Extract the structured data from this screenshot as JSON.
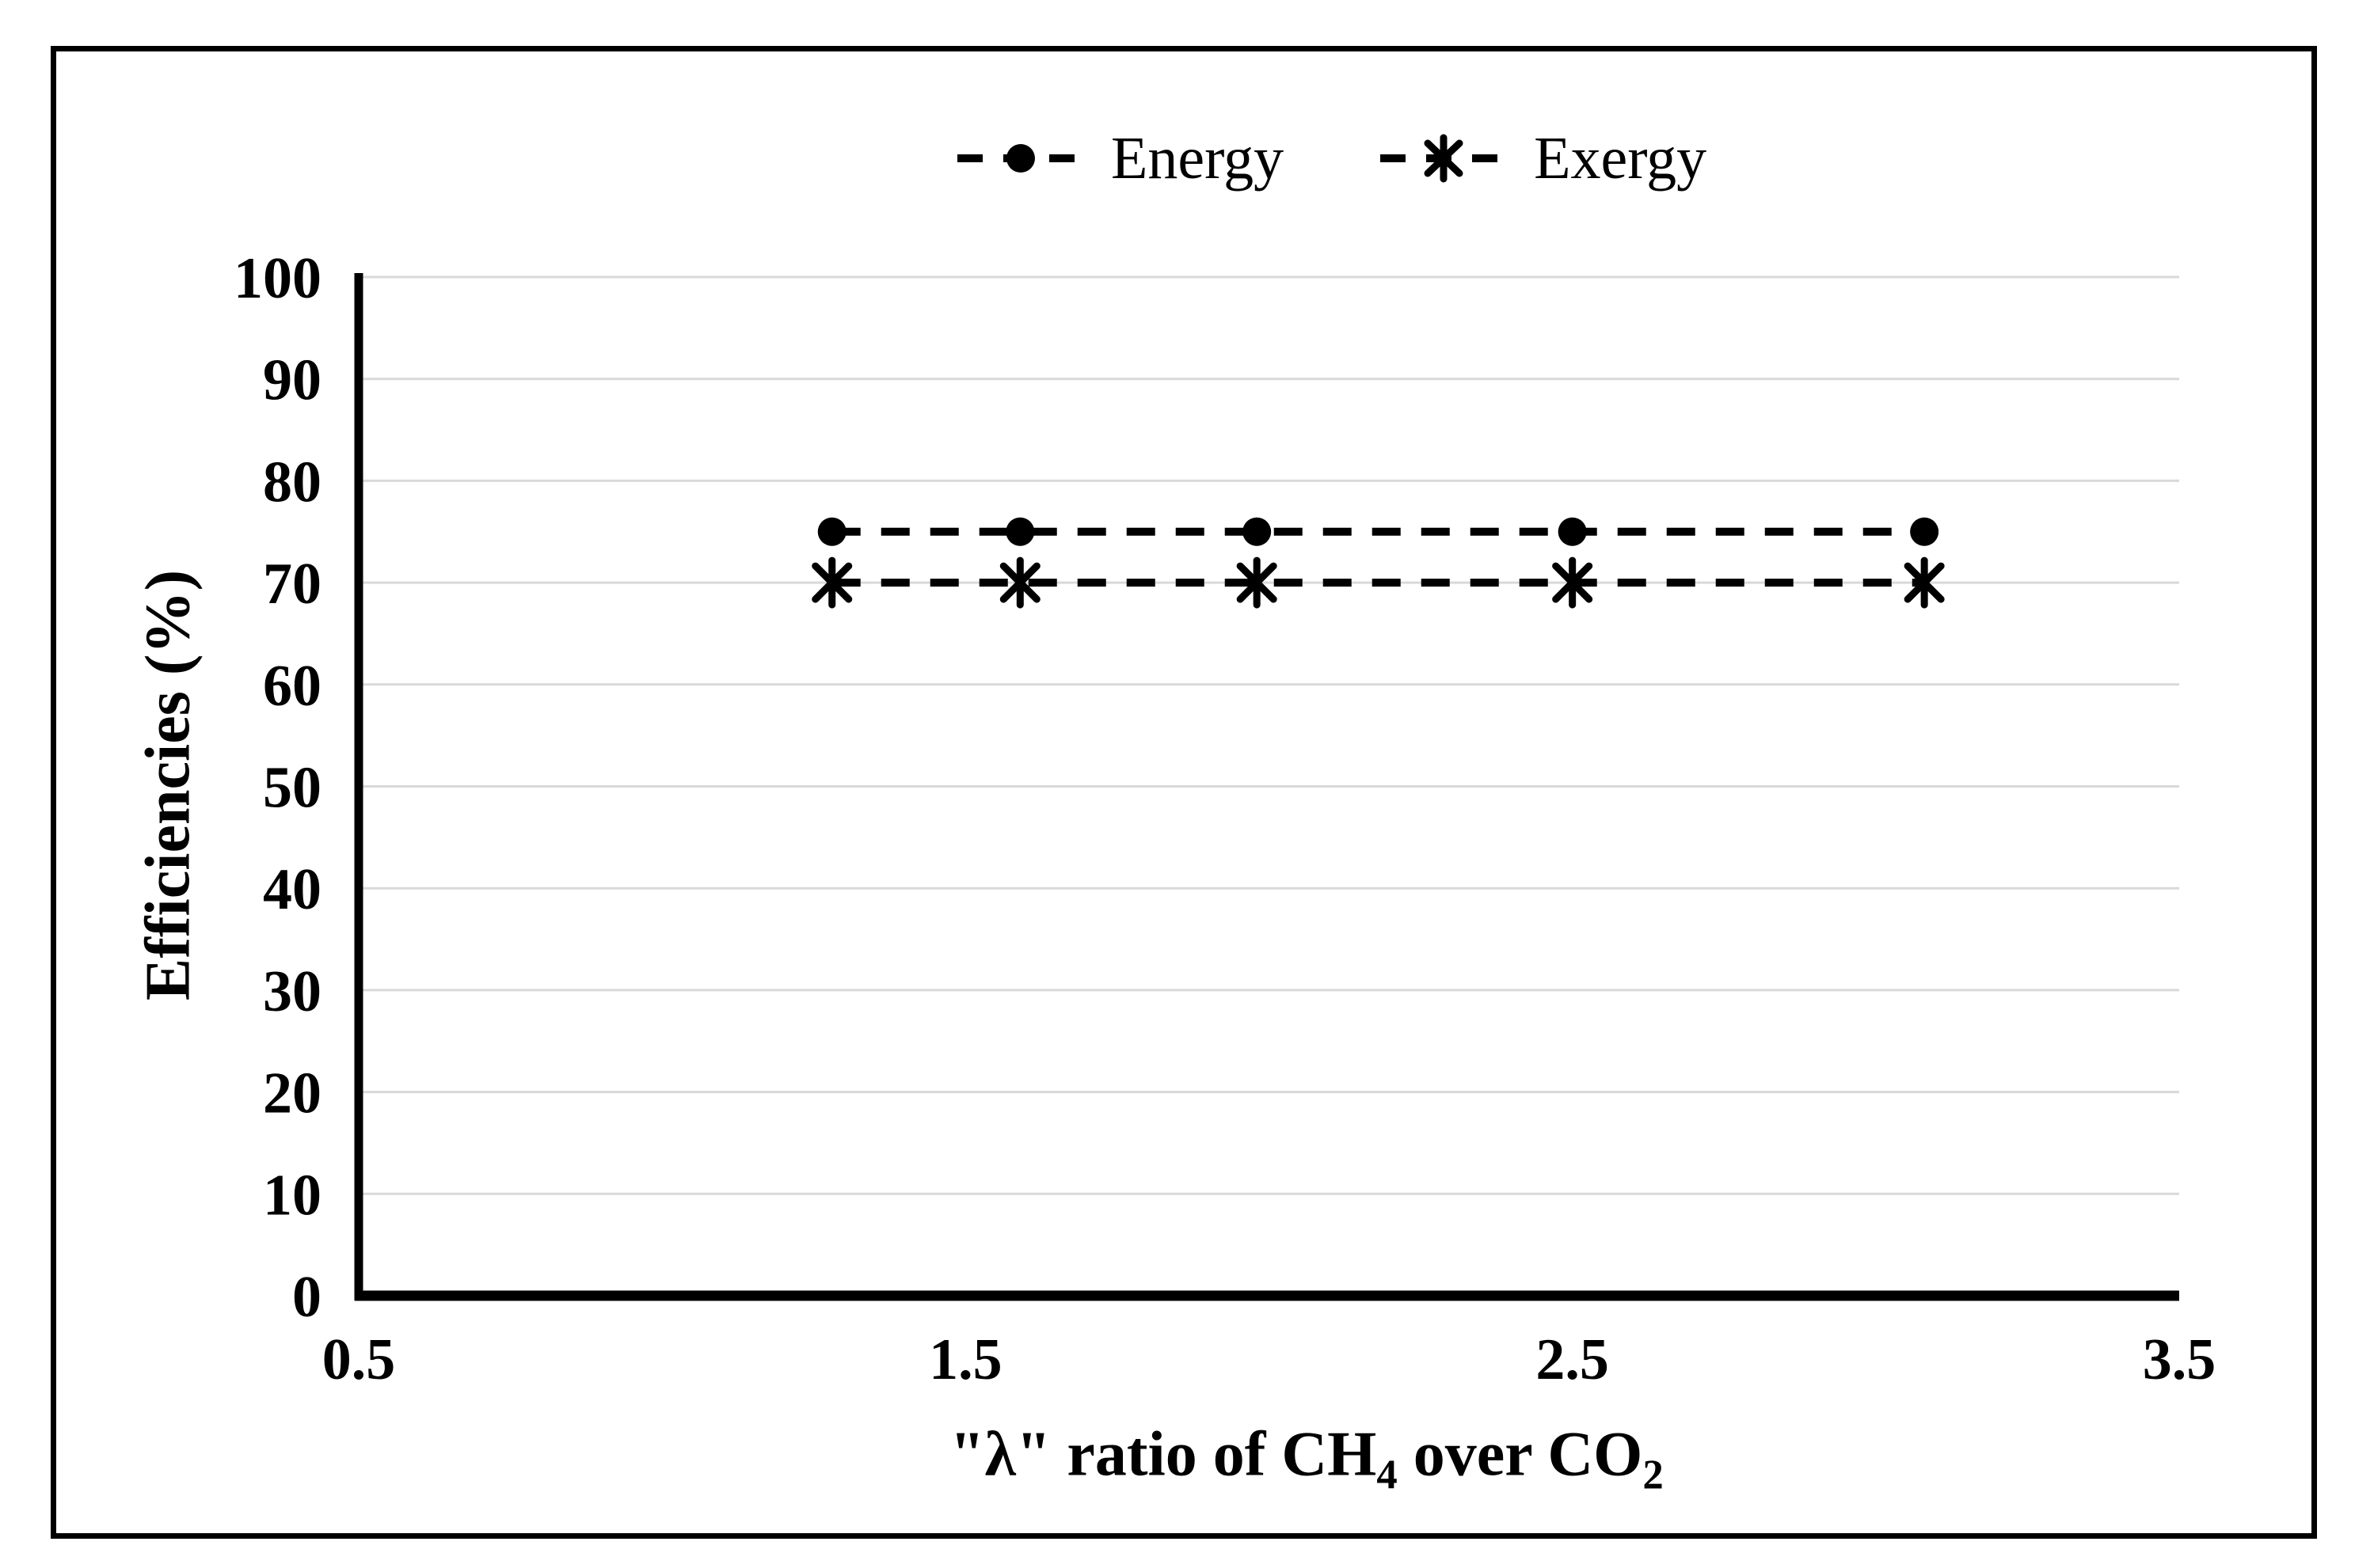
{
  "chart_data": {
    "type": "line",
    "title": "",
    "xlabel": "\"λ\" ratio of CH4 over CO2",
    "xlabel_parts": {
      "a": "\"λ\" ratio of CH",
      "a_sub": "4",
      "b": " over CO",
      "b_sub": "2"
    },
    "ylabel": "Efficiencies (%)",
    "x": [
      1.28,
      1.59,
      1.98,
      2.5,
      3.08
    ],
    "series": [
      {
        "name": "Energy",
        "marker": "circle",
        "linestyle": "dashed",
        "color": "#000000",
        "values": [
          75,
          75,
          75,
          75,
          75
        ]
      },
      {
        "name": "Exergy",
        "marker": "asterisk",
        "linestyle": "dashed",
        "color": "#000000",
        "values": [
          70,
          70,
          70,
          70,
          70
        ]
      }
    ],
    "xticks": [
      0.5,
      1.5,
      2.5,
      3.5
    ],
    "yticks": [
      0,
      10,
      20,
      30,
      40,
      50,
      60,
      70,
      80,
      90,
      100
    ],
    "xlim": [
      0.5,
      3.5
    ],
    "ylim": [
      0,
      100
    ],
    "grid": "horizontal",
    "gridline_color": "#d9d9d9",
    "axis_color": "#000000",
    "legend_position": "top-center"
  }
}
